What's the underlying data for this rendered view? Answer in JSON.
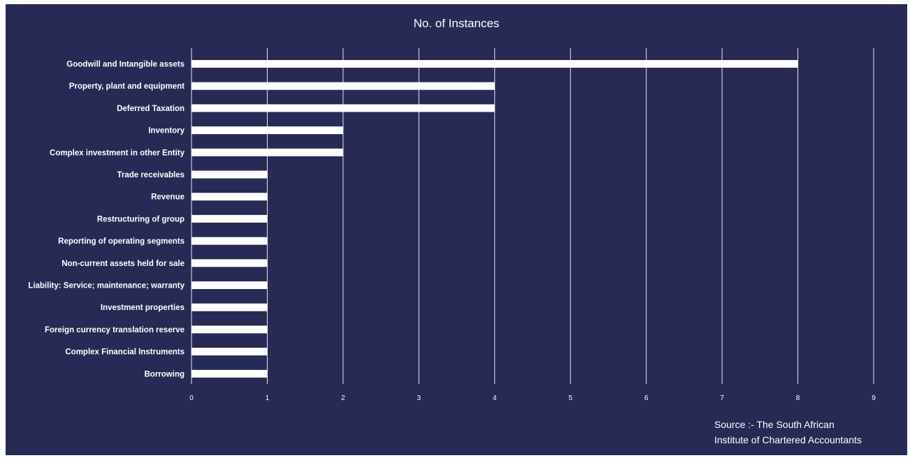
{
  "chart_data": {
    "type": "bar",
    "orientation": "horizontal",
    "title": "No. of Instances",
    "categories": [
      "Goodwill and Intangible assets",
      "Property, plant and equipment",
      "Deferred Taxation",
      "Inventory",
      "Complex investment in other Entity",
      "Trade receivables",
      "Revenue",
      "Restructuring of group",
      "Reporting of operating segments",
      "Non-current assets held for sale",
      "Liability: Service; maintenance; warranty",
      "Investment properties",
      "Foreign currency translation reserve",
      "Complex Financial Instruments",
      "Borrowing"
    ],
    "values": [
      8,
      4,
      4,
      2,
      2,
      1,
      1,
      1,
      1,
      1,
      1,
      1,
      1,
      1,
      1
    ],
    "xlim": [
      0,
      9
    ],
    "xticks": [
      "0",
      "1",
      "2",
      "3",
      "4",
      "5",
      "6",
      "7",
      "8",
      "9"
    ],
    "grid": "vertical",
    "colors": {
      "background": "#272a55",
      "bar": "#ffffff",
      "grid": "#ffffff",
      "text": "#ffffff"
    }
  },
  "source": {
    "line1": "Source :- The South African",
    "line2": "Institute of Chartered Accountants"
  }
}
